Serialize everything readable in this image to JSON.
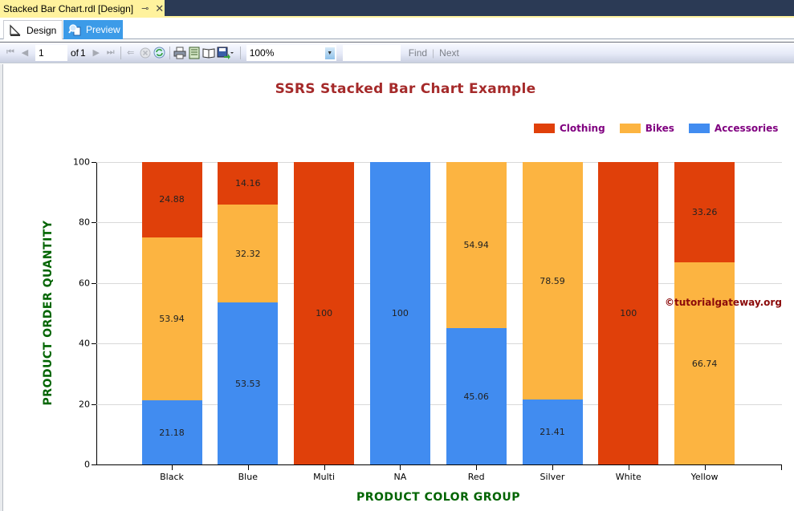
{
  "window": {
    "doc_tab_title": "Stacked Bar Chart.rdl [Design]",
    "pin_icon": "pin-icon",
    "close_icon": "close-icon"
  },
  "view_tabs": [
    {
      "label": "Design",
      "icon": "design-ruler-icon",
      "active": false
    },
    {
      "label": "Preview",
      "icon": "preview-magnifier-icon",
      "active": true
    }
  ],
  "toolbar": {
    "first_page_icon": "first-page-icon",
    "prev_page_icon": "previous-page-icon",
    "page_value": "1",
    "of_label": "of",
    "total_pages": "1",
    "next_page_icon": "next-page-icon",
    "last_page_icon": "last-page-icon",
    "back_icon": "back-to-parent-icon",
    "stop_icon": "stop-icon",
    "refresh_icon": "refresh-icon",
    "print_icon": "print-icon",
    "print_layout_icon": "print-layout-icon",
    "page_setup_icon": "page-setup-icon",
    "export_icon": "export-save-icon",
    "zoom_value": "100%",
    "find_value": "",
    "find_label": "Find",
    "next_label": "Next"
  },
  "chart_data": {
    "type": "bar",
    "stacked": true,
    "percent_stacked": true,
    "title": "SSRS Stacked Bar Chart Example",
    "xlabel": "PRODUCT COLOR GROUP",
    "ylabel": "PRODUCT ORDER QUANTITY",
    "ylim": [
      0,
      100
    ],
    "yticks": [
      0,
      20,
      40,
      60,
      80,
      100
    ],
    "grid": true,
    "legend_position": "top-right",
    "categories": [
      "Black",
      "Blue",
      "Multi",
      "NA",
      "Red",
      "Silver",
      "White",
      "Yellow"
    ],
    "series": [
      {
        "name": "Accessories",
        "color": "#418cf0",
        "values": [
          21.18,
          53.53,
          0,
          100,
          45.06,
          21.41,
          0,
          0
        ]
      },
      {
        "name": "Bikes",
        "color": "#fcb441",
        "values": [
          53.94,
          32.32,
          0,
          0,
          54.94,
          78.59,
          0,
          66.74
        ]
      },
      {
        "name": "Clothing",
        "color": "#e0400a",
        "values": [
          24.88,
          14.16,
          100,
          0,
          0,
          0,
          100,
          33.26
        ]
      }
    ],
    "legend": [
      {
        "label": "Clothing",
        "color": "#e0400a"
      },
      {
        "label": "Bikes",
        "color": "#fcb441"
      },
      {
        "label": "Accessories",
        "color": "#418cf0"
      }
    ]
  },
  "watermark": "©tutorialgateway.org",
  "colors": {
    "title": "#a52a2a",
    "axis_title": "#006400",
    "legend_text": "#800080",
    "watermark": "#8b0a0a"
  }
}
